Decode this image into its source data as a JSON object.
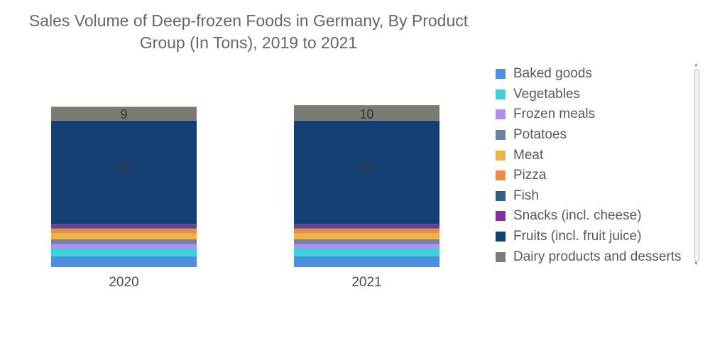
{
  "chart_data": {
    "type": "bar",
    "stacked": true,
    "title": "Sales Volume of Deep-frozen Foods in Germany, By Product Group (In Tons), 2019 to 2021",
    "categories": [
      "2020",
      "2021"
    ],
    "ylim": [
      0,
      100
    ],
    "grid": false,
    "legend_position": "right",
    "series": [
      {
        "name": "Baked goods",
        "color": "#4a90e2",
        "values": [
          7,
          7
        ]
      },
      {
        "name": "Vegetables",
        "color": "#3ecfdb",
        "values": [
          5,
          5
        ]
      },
      {
        "name": "Frozen meals",
        "color": "#b38cf5",
        "values": [
          3,
          3
        ]
      },
      {
        "name": "Potatoes",
        "color": "#6f80a5",
        "values": [
          3,
          3
        ]
      },
      {
        "name": "Meat",
        "color": "#eeb24a",
        "values": [
          4,
          4
        ]
      },
      {
        "name": "Pizza",
        "color": "#f08848",
        "values": [
          3,
          3
        ]
      },
      {
        "name": "Fish",
        "color": "#2f5f86",
        "values": [
          1.5,
          1.5
        ]
      },
      {
        "name": "Snacks (incl. cheese)",
        "color": "#8030a0",
        "values": [
          1.5,
          1.5
        ]
      },
      {
        "name": "Fruits (incl. fruit juice)",
        "color": "#143f73",
        "values": [
          67,
          67
        ]
      },
      {
        "name": "Dairy products and desserts",
        "color": "#7b7b73",
        "values": [
          9,
          10
        ]
      }
    ],
    "data_labels": [
      {
        "series": "Fruits (incl. fruit juice)",
        "category": "2020",
        "text": "67"
      },
      {
        "series": "Fruits (incl. fruit juice)",
        "category": "2021",
        "text": "67"
      },
      {
        "series": "Dairy products and desserts",
        "category": "2020",
        "text": "9"
      },
      {
        "series": "Dairy products and desserts",
        "category": "2021",
        "text": "10"
      }
    ]
  },
  "legend": {
    "items": [
      {
        "label": "Baked goods",
        "color": "#4a90e2"
      },
      {
        "label": "Vegetables",
        "color": "#3ecfdb"
      },
      {
        "label": "Frozen meals",
        "color": "#b38cf5"
      },
      {
        "label": "Potatoes",
        "color": "#6f80a5"
      },
      {
        "label": "Meat",
        "color": "#eeb24a"
      },
      {
        "label": "Pizza",
        "color": "#f08848"
      },
      {
        "label": "Fish",
        "color": "#2f5f86"
      },
      {
        "label": "Snacks (incl. cheese)",
        "color": "#8030a0"
      },
      {
        "label": "Fruits (incl. fruit juice)",
        "color": "#143f73"
      },
      {
        "label": "Dairy products and desserts",
        "color": "#7b7b73"
      }
    ]
  },
  "scrollbar": {
    "up_icon": "▲",
    "down_icon": "▼"
  }
}
